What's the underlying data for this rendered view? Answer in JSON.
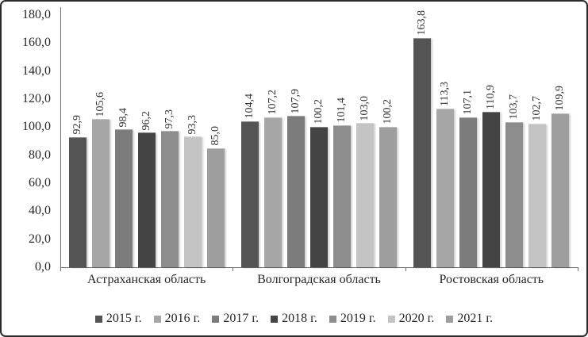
{
  "window": {
    "background": "#ffffff",
    "frame_border_color": "#2b2b2b"
  },
  "chart_data": {
    "type": "bar",
    "title": "",
    "xlabel": "",
    "ylabel": "",
    "grid": "off",
    "legend_position": "bottom",
    "value_labels": "rotated-90-above-bars",
    "decimal_separator": ",",
    "ylim": [
      0,
      180
    ],
    "y_tick_step": 20,
    "y_ticks": [
      "0,0",
      "20,0",
      "40,0",
      "60,0",
      "80,0",
      "100,0",
      "120,0",
      "140,0",
      "160,0",
      "180,0"
    ],
    "categories": [
      "Астраханская область",
      "Волгоградская область",
      "Ростовская область"
    ],
    "series": [
      {
        "name": "2015 г.",
        "color": "#545454",
        "values": [
          92.9,
          104.4,
          163.8
        ]
      },
      {
        "name": "2016 г.",
        "color": "#a6a6a6",
        "values": [
          105.6,
          107.2,
          113.3
        ]
      },
      {
        "name": "2017 г.",
        "color": "#7c7c7c",
        "values": [
          98.4,
          107.9,
          107.1
        ]
      },
      {
        "name": "2018 г.",
        "color": "#444444",
        "values": [
          96.2,
          100.2,
          110.9
        ]
      },
      {
        "name": "2019 г.",
        "color": "#8d8d8d",
        "values": [
          97.3,
          101.4,
          103.7
        ]
      },
      {
        "name": "2020 г.",
        "color": "#c4c4c4",
        "values": [
          93.3,
          103.0,
          102.7
        ]
      },
      {
        "name": "2021 г.",
        "color": "#9e9e9e",
        "values": [
          85.0,
          100.2,
          109.9
        ]
      }
    ]
  },
  "colors": {
    "axis_line": "#6e6e6e",
    "tick_text": "#262626",
    "data_label_text": "#333333"
  }
}
